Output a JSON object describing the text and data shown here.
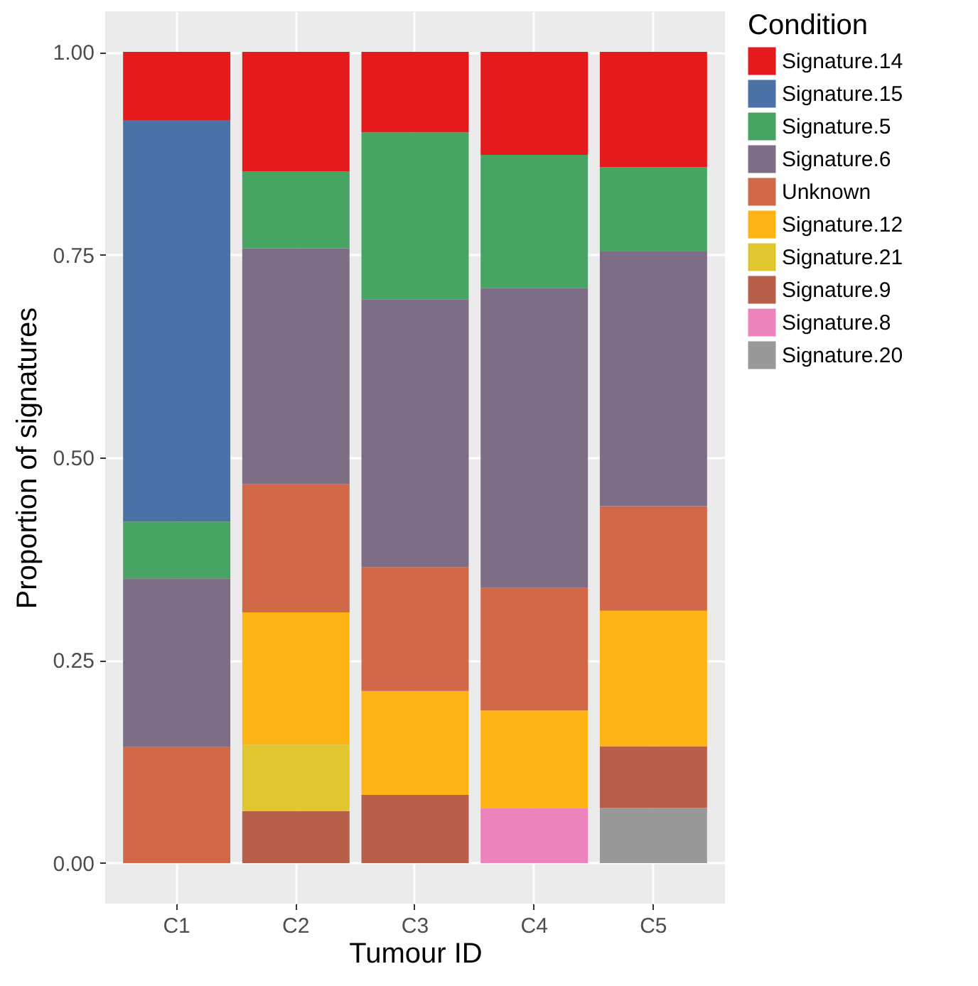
{
  "chart_data": {
    "type": "bar",
    "stacked": true,
    "xlabel": "Tumour ID",
    "ylabel": "Proportion of signatures",
    "legend_title": "Condition",
    "categories": [
      "C1",
      "C2",
      "C3",
      "C4",
      "C5"
    ],
    "series": [
      {
        "name": "Signature.20",
        "color": "#999999",
        "values": [
          null,
          null,
          null,
          null,
          0.068
        ]
      },
      {
        "name": "Signature.8",
        "color": "#ec83ba",
        "values": [
          null,
          null,
          null,
          0.068,
          null
        ]
      },
      {
        "name": "Signature.9",
        "color": "#b75f49",
        "values": [
          null,
          0.064,
          0.084,
          null,
          0.076
        ]
      },
      {
        "name": "Signature.21",
        "color": "#e1c62f",
        "values": [
          null,
          0.082,
          null,
          null,
          null
        ]
      },
      {
        "name": "Signature.12",
        "color": "#ffb416",
        "values": [
          null,
          0.163,
          0.128,
          0.12,
          0.167
        ]
      },
      {
        "name": "Unknown",
        "color": "#d16948",
        "values": [
          0.143,
          0.158,
          0.153,
          0.151,
          0.129
        ]
      },
      {
        "name": "Signature.6",
        "color": "#7e6e85",
        "values": [
          0.208,
          0.291,
          0.33,
          0.37,
          0.314
        ]
      },
      {
        "name": "Signature.5",
        "color": "#48a462",
        "values": [
          0.07,
          0.095,
          0.206,
          0.164,
          0.104
        ]
      },
      {
        "name": "Signature.15",
        "color": "#4a72a6",
        "values": [
          0.495,
          null,
          null,
          null,
          null
        ]
      },
      {
        "name": "Signature.14",
        "color": "#e41a1c",
        "values": [
          0.084,
          0.147,
          0.099,
          0.127,
          0.142
        ]
      }
    ],
    "ylim": [
      -0.05,
      1.05
    ],
    "yticks": [
      {
        "value": 0,
        "label": "0.00"
      },
      {
        "value": 0.25,
        "label": "0.25"
      },
      {
        "value": 0.5,
        "label": "0.50"
      },
      {
        "value": 0.75,
        "label": "0.75"
      },
      {
        "value": 1,
        "label": "1.00"
      }
    ],
    "grid": true,
    "legend": "right"
  }
}
